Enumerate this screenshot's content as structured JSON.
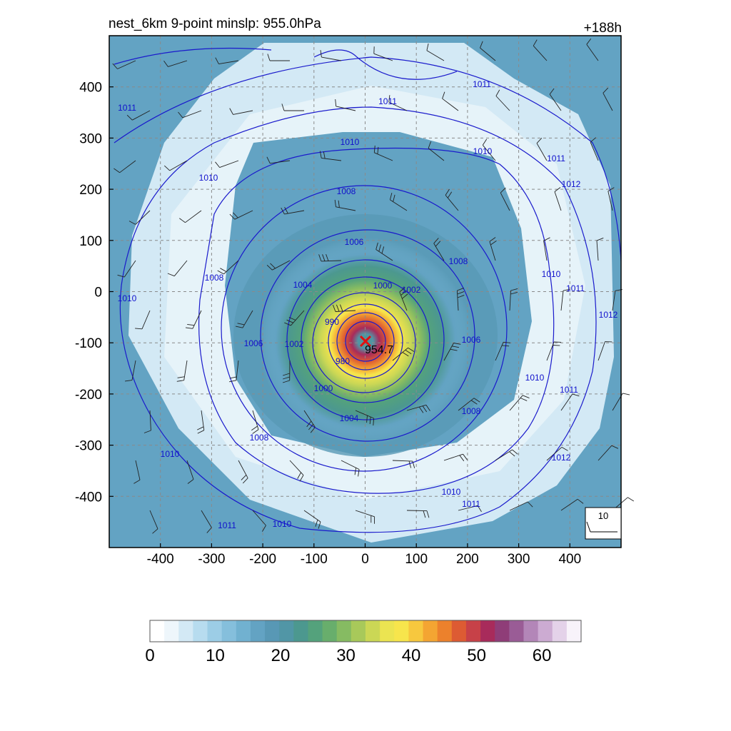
{
  "title": "nest_6km  9-point minslp: 955.0hPa",
  "forecast_hour": "+188h",
  "storm": {
    "center_label": "954.7",
    "center_marker": "red-x"
  },
  "axes": {
    "x_ticks": [
      "-400",
      "-300",
      "-200",
      "-100",
      "0",
      "100",
      "200",
      "300",
      "400"
    ],
    "y_ticks": [
      "400",
      "300",
      "200",
      "100",
      "0",
      "-100",
      "-200",
      "-300",
      "-400"
    ],
    "range": [
      -500,
      500
    ],
    "grid": "dashed-gray"
  },
  "wind_key": {
    "label": "10"
  },
  "isobars": [
    {
      "value": "1011",
      "label": "1011"
    },
    {
      "value": "1010",
      "label": "1010"
    },
    {
      "value": "1008",
      "label": "1008"
    },
    {
      "value": "1006",
      "label": "1006"
    },
    {
      "value": "1004",
      "label": "1004"
    },
    {
      "value": "1002",
      "label": "1002"
    },
    {
      "value": "1000",
      "label": "1000"
    },
    {
      "value": "990",
      "label": "990"
    },
    {
      "value": "980",
      "label": "980"
    },
    {
      "value": "1012",
      "label": "1012"
    }
  ],
  "colorbar": {
    "labels": [
      "0",
      "10",
      "20",
      "30",
      "40",
      "50",
      "60"
    ],
    "max": 66,
    "colors": [
      "#ffffff",
      "#eef6fb",
      "#d3e9f5",
      "#b7dcef",
      "#9ccde6",
      "#85bfdc",
      "#71b1d0",
      "#63a3c3",
      "#5898b5",
      "#5196a6",
      "#4c988f",
      "#54a27c",
      "#68ae6c",
      "#86bb62",
      "#a8c95a",
      "#cbd755",
      "#ebe451",
      "#f7e54c",
      "#f7c83e",
      "#f4a532",
      "#ec812c",
      "#dd5b33",
      "#c74148",
      "#a82b5b",
      "#8f3d78",
      "#9a5c96",
      "#b386b8",
      "#ccabd2",
      "#e4d2e9",
      "#f8f3fa"
    ]
  }
}
